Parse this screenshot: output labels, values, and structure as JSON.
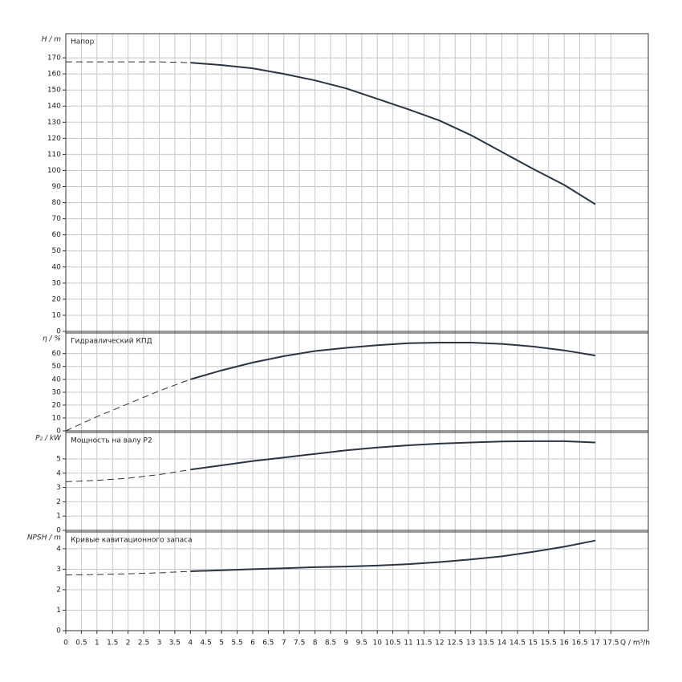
{
  "chart_data": [
    {
      "type": "line",
      "title": "Напор",
      "ylabel": "H / m",
      "color": "#2b3440",
      "ylim": [
        0,
        185
      ],
      "yticks": [
        0,
        10,
        20,
        30,
        40,
        50,
        60,
        70,
        80,
        90,
        100,
        110,
        120,
        130,
        140,
        150,
        160,
        170
      ],
      "series": [
        {
          "style": "dashed",
          "x": [
            0,
            1,
            2,
            3,
            4
          ],
          "values": [
            167.5,
            167.5,
            167.5,
            167.5,
            167
          ]
        },
        {
          "style": "solid",
          "x": [
            4,
            5,
            6,
            7,
            8,
            9,
            10,
            11,
            12,
            13,
            14,
            15,
            16,
            17
          ],
          "values": [
            167,
            165.5,
            163.5,
            160,
            156,
            151,
            144.5,
            138,
            131,
            122,
            111.5,
            101,
            91,
            79
          ]
        }
      ]
    },
    {
      "type": "line",
      "title": "Гидравлический КПД",
      "ylabel": "η / %",
      "color": "#2b3440",
      "ylim": [
        0,
        76
      ],
      "yticks": [
        0,
        10,
        20,
        30,
        40,
        50,
        60
      ],
      "series": [
        {
          "style": "dashed",
          "x": [
            0,
            1,
            2,
            3,
            4
          ],
          "values": [
            0,
            11,
            21,
            31,
            40
          ]
        },
        {
          "style": "solid",
          "x": [
            4,
            5,
            6,
            7,
            8,
            9,
            10,
            11,
            12,
            13,
            14,
            15,
            16,
            17
          ],
          "values": [
            40,
            47,
            53,
            58,
            62,
            64.5,
            66.5,
            68,
            68.5,
            68.5,
            67.5,
            65.5,
            62.5,
            58.5
          ]
        }
      ]
    },
    {
      "type": "line",
      "title": "Мощность на валу P2",
      "ylabel": "P₂ / kW",
      "color": "#2b3440",
      "ylim": [
        0,
        6.85
      ],
      "yticks": [
        0,
        1,
        2,
        3,
        4,
        5
      ],
      "series": [
        {
          "style": "dashed",
          "x": [
            0,
            1,
            2,
            3,
            4
          ],
          "values": [
            3.4,
            3.5,
            3.65,
            3.9,
            4.25
          ]
        },
        {
          "style": "solid",
          "x": [
            4,
            5,
            6,
            7,
            8,
            9,
            10,
            11,
            12,
            13,
            14,
            15,
            16,
            17
          ],
          "values": [
            4.25,
            4.55,
            4.85,
            5.1,
            5.35,
            5.6,
            5.8,
            5.95,
            6.07,
            6.15,
            6.22,
            6.24,
            6.24,
            6.15
          ]
        }
      ]
    },
    {
      "type": "line",
      "title": "Кривые кавитационного запаса",
      "ylabel": "NPSH / m",
      "color": "#2b3440",
      "ylim": [
        0,
        4.82
      ],
      "yticks": [
        0,
        1,
        2,
        3,
        4
      ],
      "xlabel": "Q / m³/h",
      "xlim": [
        0,
        18.7
      ],
      "xticks": [
        0,
        0.5,
        1,
        1.5,
        2,
        2.5,
        3,
        3.5,
        4,
        4.5,
        5,
        5.5,
        6,
        6.5,
        7,
        7.5,
        8,
        8.5,
        9,
        9.5,
        10,
        10.5,
        11,
        11.5,
        12,
        12.5,
        13,
        13.5,
        14,
        14.5,
        15,
        15.5,
        16,
        16.5,
        17,
        17.5
      ],
      "series": [
        {
          "style": "dashed",
          "x": [
            0,
            1,
            2,
            3,
            4
          ],
          "values": [
            2.72,
            2.74,
            2.78,
            2.82,
            2.9
          ]
        },
        {
          "style": "solid",
          "x": [
            4,
            5,
            6,
            7,
            8,
            9,
            10,
            11,
            12,
            13,
            14,
            15,
            16,
            17
          ],
          "values": [
            2.9,
            2.95,
            3.0,
            3.05,
            3.1,
            3.13,
            3.18,
            3.25,
            3.35,
            3.48,
            3.63,
            3.85,
            4.1,
            4.4
          ]
        }
      ]
    }
  ]
}
